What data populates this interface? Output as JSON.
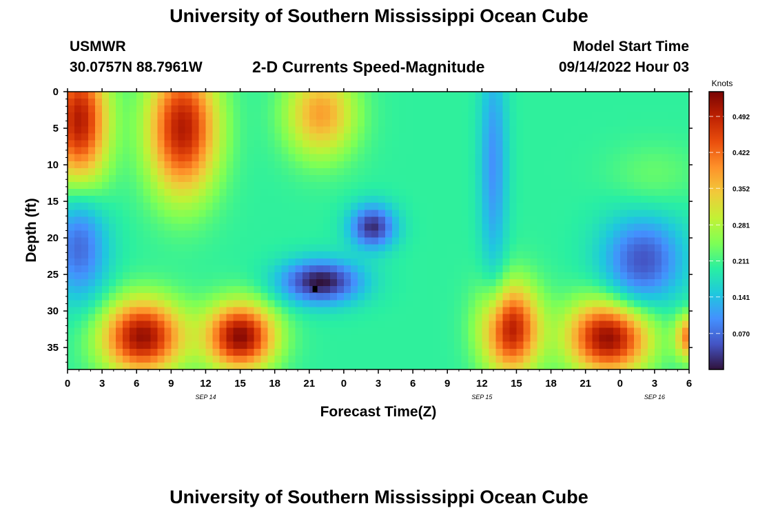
{
  "page": {
    "title": "University of Southern Mississippi Ocean Cube",
    "station": "USMWR",
    "coordinates": "30.0757N  88.7961W",
    "subtitle": "2-D Currents Speed-Magnitude",
    "model_start_label": "Model Start Time",
    "model_start_value": "09/14/2022 Hour 03",
    "footer_title": "University of Southern Mississippi Ocean Cube"
  },
  "chart_data": {
    "type": "heatmap",
    "xlabel": "Forecast Time(Z)",
    "ylabel": "Depth (ft)",
    "x_range_hours": [
      0,
      54
    ],
    "y_range_ft": [
      0,
      38
    ],
    "y_inverted": true,
    "x_ticks": [
      "0",
      "3",
      "6",
      "9",
      "12",
      "15",
      "18",
      "21",
      "0",
      "3",
      "6",
      "9",
      "12",
      "15",
      "18",
      "21",
      "0",
      "3",
      "6"
    ],
    "y_ticks": [
      "0",
      "5",
      "10",
      "15",
      "20",
      "25",
      "30",
      "35"
    ],
    "date_labels": [
      {
        "label": "SEP 14",
        "hour": 12
      },
      {
        "label": "SEP 15",
        "hour": 36
      },
      {
        "label": "SEP 16",
        "hour": 51
      }
    ],
    "colorbar": {
      "title": "Knots",
      "ticks": [
        0.07,
        0.141,
        0.211,
        0.281,
        0.352,
        0.422,
        0.492
      ],
      "tick_labels": [
        "0.070",
        "0.141",
        "0.211",
        "0.281",
        "0.352",
        "0.422",
        "0.492"
      ],
      "min": 0.0,
      "max": 0.54,
      "colors": [
        "#30123b",
        "#4454c4",
        "#4490fe",
        "#1fc8de",
        "#29efa2",
        "#7eff55",
        "#c3f135",
        "#f1ca3a",
        "#fe922a",
        "#ea4f0d",
        "#be2102",
        "#7a0403"
      ]
    },
    "grid": false,
    "marker": {
      "hour": 21.5,
      "depth": 27,
      "shape": "square"
    },
    "features": [
      {
        "hour": 1,
        "depth": 4,
        "dx": 2.5,
        "dy": 9,
        "value": 0.5
      },
      {
        "hour": 10,
        "depth": 5,
        "dx": 3,
        "dy": 9,
        "value": 0.5
      },
      {
        "hour": 22,
        "depth": 3,
        "dx": 3,
        "dy": 6,
        "value": 0.38
      },
      {
        "hour": 6.5,
        "depth": 33.5,
        "dx": 3.5,
        "dy": 5,
        "value": 0.52
      },
      {
        "hour": 15,
        "depth": 33.5,
        "dx": 3,
        "dy": 4.5,
        "value": 0.53
      },
      {
        "hour": 38.5,
        "depth": 32.5,
        "dx": 2.5,
        "dy": 6,
        "value": 0.5
      },
      {
        "hour": 47,
        "depth": 33.5,
        "dx": 3.5,
        "dy": 5,
        "value": 0.53
      },
      {
        "hour": 54,
        "depth": 33.5,
        "dx": 1.2,
        "dy": 3,
        "value": 0.42
      },
      {
        "hour": 1,
        "depth": 21.5,
        "dx": 2.5,
        "dy": 7,
        "value": 0.07
      },
      {
        "hour": 22,
        "depth": 26,
        "dx": 3.5,
        "dy": 3,
        "value": 0.0
      },
      {
        "hour": 26.5,
        "depth": 18.5,
        "dx": 2,
        "dy": 3,
        "value": 0.02
      },
      {
        "hour": 37,
        "depth": 10,
        "dx": 1.2,
        "dy": 15,
        "value": 0.1
      },
      {
        "hour": 50,
        "depth": 23,
        "dx": 3.5,
        "dy": 6,
        "value": 0.05
      },
      {
        "hour": 51,
        "depth": 11,
        "dx": 4,
        "dy": 4,
        "value": 0.23
      }
    ]
  }
}
